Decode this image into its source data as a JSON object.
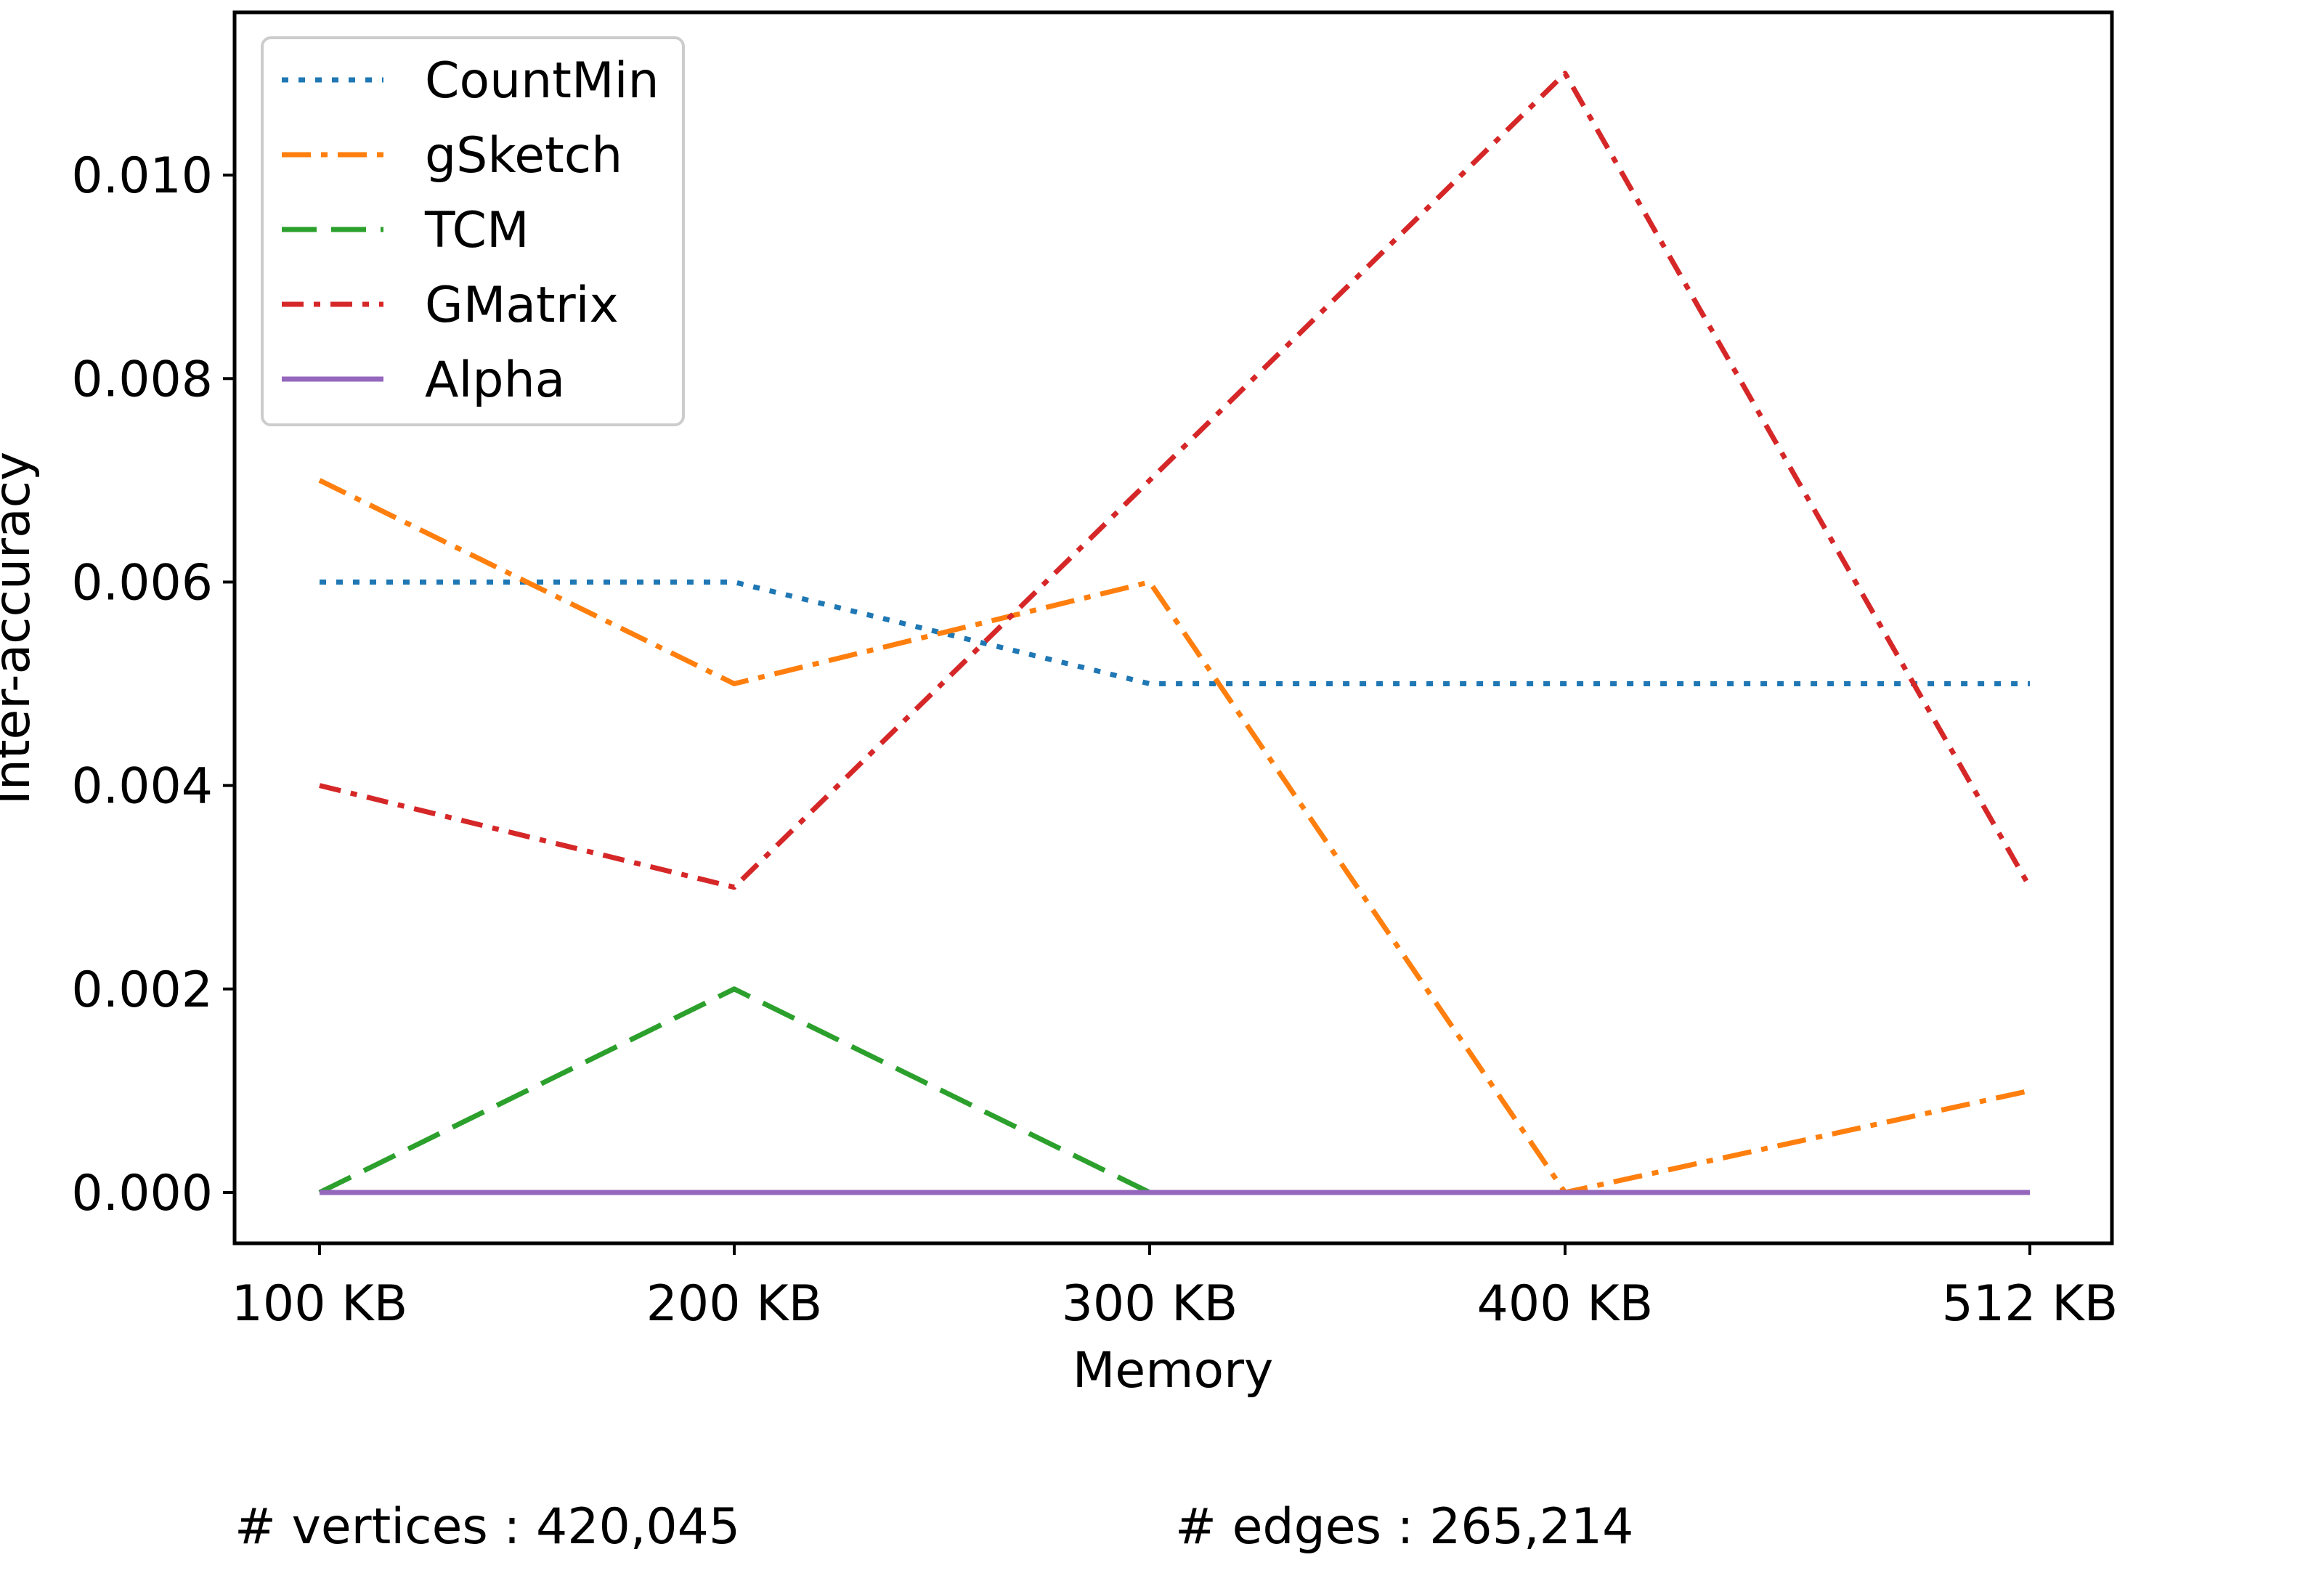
{
  "chart_data": {
    "type": "line",
    "title": "",
    "xlabel": "Memory",
    "ylabel": "Inter-accuracy",
    "categories": [
      "100 KB",
      "200 KB",
      "300 KB",
      "400 KB",
      "512 KB"
    ],
    "x": [
      100,
      200,
      300,
      400,
      512
    ],
    "ylim": [
      -0.0005,
      0.0116
    ],
    "yticks": [
      0.0,
      0.002,
      0.004,
      0.006,
      0.008,
      0.01
    ],
    "ytick_labels": [
      "0.000",
      "0.002",
      "0.004",
      "0.006",
      "0.008",
      "0.010"
    ],
    "grid": false,
    "legend_placement": "top-left",
    "series": [
      {
        "name": "CountMin",
        "values": [
          0.006,
          0.006,
          0.005,
          0.005,
          0.005
        ],
        "color": "#1f77b4",
        "linestyle": "dotted"
      },
      {
        "name": "gSketch",
        "values": [
          0.007,
          0.005,
          0.006,
          0.0,
          0.001
        ],
        "color": "#ff7f0e",
        "linestyle": "dashdot"
      },
      {
        "name": "TCM",
        "values": [
          0.0,
          0.002,
          0.0,
          0.0,
          0.0
        ],
        "color": "#2ca02c",
        "linestyle": "dashed"
      },
      {
        "name": "GMatrix",
        "values": [
          0.004,
          0.003,
          0.007,
          0.011,
          0.003
        ],
        "color": "#d62728",
        "linestyle": "densely-dashdot"
      },
      {
        "name": "Alpha",
        "values": [
          0.0,
          0.0,
          0.0,
          0.0,
          0.0
        ],
        "color": "#9467bd",
        "linestyle": "solid"
      }
    ]
  },
  "footer": {
    "vertices": "# vertices : 420,045",
    "edges": "# edges : 265,214"
  }
}
